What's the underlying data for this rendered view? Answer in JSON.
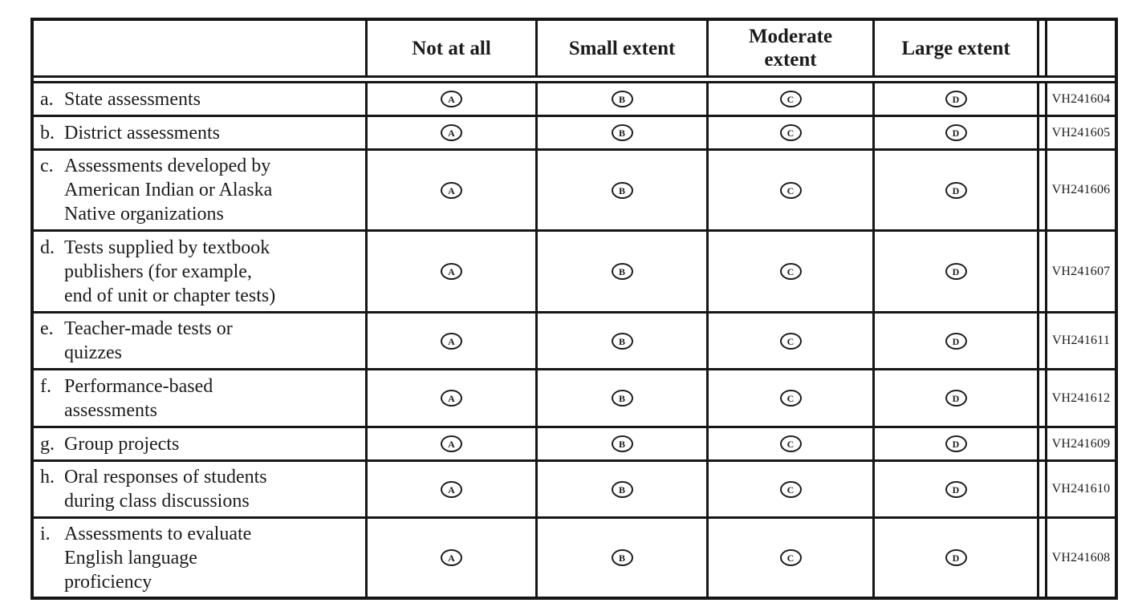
{
  "table": {
    "header": {
      "columns": [
        "Not at all",
        "Small extent",
        "Moderate\nextent",
        "Large extent"
      ]
    },
    "option_letters": [
      "A",
      "B",
      "C",
      "D"
    ],
    "rows": [
      {
        "letter": "a.",
        "label": "State assessments",
        "code": "VH241604"
      },
      {
        "letter": "b.",
        "label": "District assessments",
        "code": "VH241605"
      },
      {
        "letter": "c.",
        "label": "Assessments developed by\nAmerican Indian or Alaska\nNative organizations",
        "code": "VH241606"
      },
      {
        "letter": "d.",
        "label": "Tests supplied by textbook\npublishers (for example,\nend of unit or chapter tests)",
        "code": "VH241607"
      },
      {
        "letter": "e.",
        "label": "Teacher-made tests or\nquizzes",
        "code": "VH241611"
      },
      {
        "letter": "f.",
        "label": "Performance-based\nassessments",
        "code": "VH241612"
      },
      {
        "letter": "g.",
        "label": "Group projects",
        "code": "VH241609"
      },
      {
        "letter": "h.",
        "label": "Oral responses of students\nduring class discussions",
        "code": "VH241610"
      },
      {
        "letter": "i.",
        "label": "Assessments to evaluate\nEnglish language\nproficiency",
        "code": "VH241608"
      }
    ],
    "colors": {
      "border": "#161616",
      "text": "#1c1c1c",
      "background": "#ffffff"
    }
  }
}
